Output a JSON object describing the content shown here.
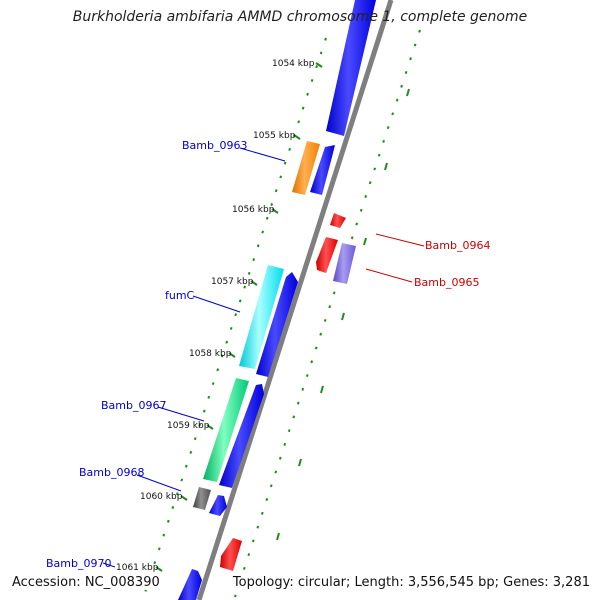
{
  "title": "Burkholderia ambifaria AMMD chromosome 1, complete genome",
  "footer": {
    "accession": "Accession: NC_008390",
    "summary": "Topology: circular; Length: 3,556,545 bp; Genes: 3,281"
  },
  "colors": {
    "background": "#ffffff",
    "backbone": "#808080",
    "forward_cds": "#0000ff",
    "reverse_cds": "#ff0000",
    "ticks": "#1e8c1e",
    "label_forward": "#0000cc",
    "label_reverse": "#cc0000"
  },
  "ruler": {
    "unit": "kbp",
    "labels": [
      "1054 kbp",
      "1055 kbp",
      "1056 kbp",
      "1057 kbp",
      "1058 kbp",
      "1059 kbp",
      "1060 kbp",
      "1061 kbp"
    ]
  },
  "feature_labels": {
    "forward": [
      "Bamb_0963",
      "fumC",
      "Bamb_0967",
      "Bamb_0968",
      "Bamb_0970"
    ],
    "reverse": [
      "Bamb_0964",
      "Bamb_0965"
    ]
  }
}
